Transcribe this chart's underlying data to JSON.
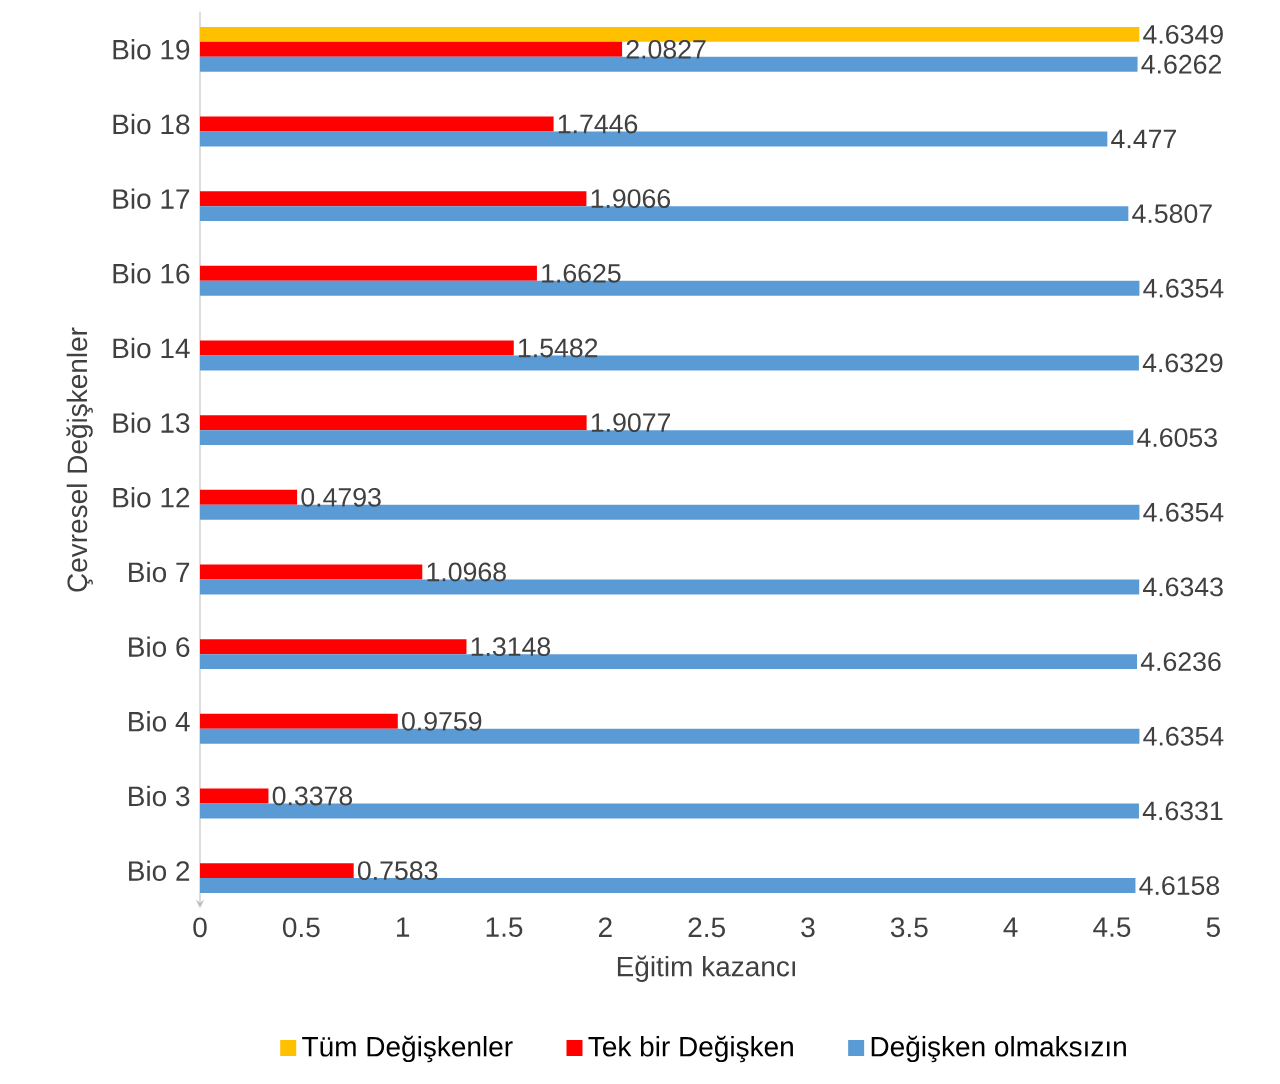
{
  "chart_data": {
    "type": "bar",
    "orientation": "horizontal",
    "xlabel": "Eğitim kazancı",
    "ylabel": "Çevresel Değişkenler",
    "categories": [
      "Bio 19",
      "Bio 18",
      "Bio 17",
      "Bio 16",
      "Bio 14",
      "Bio 13",
      "Bio 12",
      "Bio 7",
      "Bio 6",
      "Bio 4",
      "Bio 3",
      "Bio 2"
    ],
    "series": [
      {
        "name": "Tüm Değişkenler",
        "color": "#ffc000",
        "values": [
          4.6349,
          null,
          null,
          null,
          null,
          null,
          null,
          null,
          null,
          null,
          null,
          null
        ]
      },
      {
        "name": "Tek bir Değişken",
        "color": "#ff0000",
        "values": [
          2.0827,
          1.7446,
          1.9066,
          1.6625,
          1.5482,
          1.9077,
          0.4793,
          1.0968,
          1.3148,
          0.9759,
          0.3378,
          0.7583
        ]
      },
      {
        "name": "Değişken olmaksızın",
        "color": "#5b9bd5",
        "values": [
          4.6262,
          4.477,
          4.5807,
          4.6354,
          4.6329,
          4.6053,
          4.6354,
          4.6343,
          4.6236,
          4.6354,
          4.6331,
          4.6158
        ]
      }
    ],
    "xlim": [
      0,
      5
    ],
    "xticks": [
      0,
      0.5,
      1,
      1.5,
      2,
      2.5,
      3,
      3.5,
      4,
      4.5,
      5
    ],
    "data_labels": true,
    "legend": "bottom",
    "grid": false
  }
}
